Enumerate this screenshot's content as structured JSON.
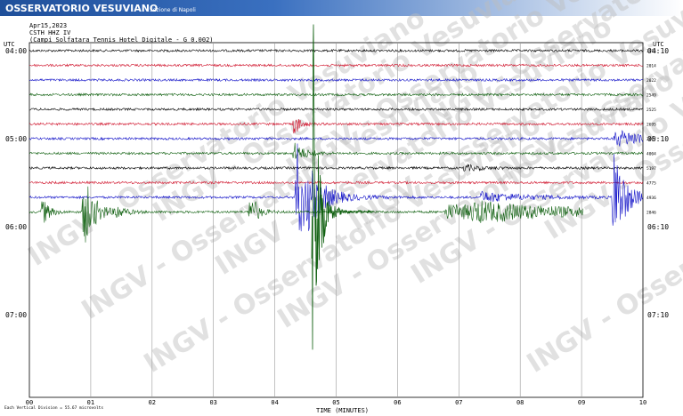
{
  "header": {
    "title": "OSSERVATORIO VESUVIANO",
    "subtitle": "Sezione di Napoli"
  },
  "info": {
    "date": "Apr15,2023",
    "station": "CSTH HHZ IV",
    "description": "(Campi Solfatara Tennis Hotel Digitale - G 0.002)"
  },
  "left_axis": {
    "unit": "UTC",
    "labels": [
      "04:00",
      "05:00",
      "06:00",
      "07:00"
    ]
  },
  "right_axis": {
    "unit": "UTC",
    "labels": [
      "04:10",
      "05:10",
      "06:10",
      "07:10"
    ]
  },
  "trace_labels": [
    "1711",
    "2014",
    "2022",
    "2549",
    "2525",
    "2695",
    "2607",
    "4004",
    "5197",
    "4775",
    "4936",
    "2846"
  ],
  "x_axis": {
    "labels": [
      "00",
      "01",
      "02",
      "03",
      "04",
      "05",
      "06",
      "07",
      "08",
      "09",
      "10"
    ],
    "title": "TIME (MINUTES)"
  },
  "footer": {
    "note": "Each Vertical Division = 55.67 microvolts"
  },
  "watermark": "INGV - Osservatorio Vesuviano"
}
